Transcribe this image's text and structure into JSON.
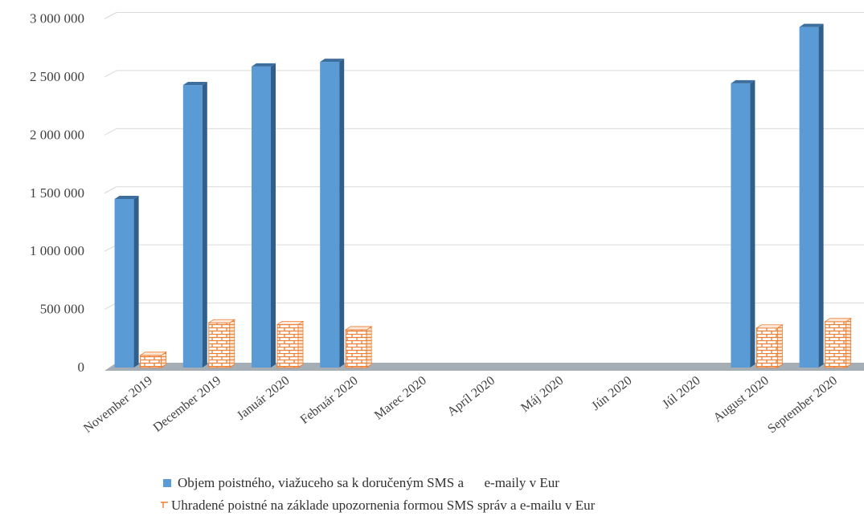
{
  "chart_data": {
    "type": "bar",
    "categories": [
      "November 2019",
      "December 2019",
      "Január 2020",
      "Február 2020",
      "Marec 2020",
      "Apríl 2020",
      "Máj 2020",
      "Jún 2020",
      "Júl 2020",
      "August 2020",
      "September 2020"
    ],
    "series": [
      {
        "name": "Objem poistného, viažuceho sa k doručeným SMS a      e-maily v Eur",
        "color": "#5b9bd5",
        "values": [
          1450000,
          2430000,
          2590000,
          2630000,
          null,
          null,
          null,
          null,
          null,
          2445000,
          2930000
        ]
      },
      {
        "name": "Uhradené poistné na základe upozornenia formou SMS správ a e-mailu v Eur",
        "color": "#ed7d31",
        "values": [
          105000,
          385000,
          370000,
          325000,
          null,
          null,
          null,
          null,
          null,
          340000,
          395000
        ]
      }
    ],
    "yticks": [
      "0",
      "500 000",
      "1 000 000",
      "1 500 000",
      "2 000 000",
      "2 500 000",
      "3 000 000"
    ],
    "ylim": [
      0,
      3000000
    ],
    "grid": true,
    "legend_position": "bottom",
    "style": "3d-column"
  }
}
